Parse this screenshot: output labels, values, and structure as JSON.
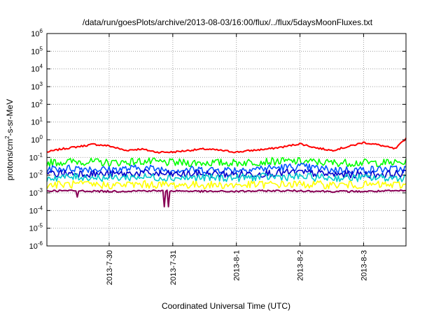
{
  "chart_data": {
    "type": "line",
    "title": "/data/run/goesPlots/archive/2013-08-03/16:00/flux/../flux/5daysMoonFluxes.txt",
    "xlabel": "Coordinated Universal Time (UTC)",
    "ylabel": {
      "base": "protons/cm",
      "sup": "2",
      "rest": "-s-sr-MeV"
    },
    "y_scale": "log",
    "ylim": [
      1e-06,
      1000000.0
    ],
    "y_ticks": [
      {
        "value": 1e-06,
        "base": "10",
        "exp": "-6"
      },
      {
        "value": 1e-05,
        "base": "10",
        "exp": "-5"
      },
      {
        "value": 0.0001,
        "base": "10",
        "exp": "-4"
      },
      {
        "value": 0.001,
        "base": "10",
        "exp": "-3"
      },
      {
        "value": 0.01,
        "base": "10",
        "exp": "-2"
      },
      {
        "value": 0.1,
        "base": "10",
        "exp": "-1"
      },
      {
        "value": 1.0,
        "base": "10",
        "exp": "0"
      },
      {
        "value": 10.0,
        "base": "10",
        "exp": "1"
      },
      {
        "value": 100.0,
        "base": "10",
        "exp": "2"
      },
      {
        "value": 1000.0,
        "base": "10",
        "exp": "3"
      },
      {
        "value": 10000.0,
        "base": "10",
        "exp": "4"
      },
      {
        "value": 100000.0,
        "base": "10",
        "exp": "5"
      },
      {
        "value": 1000000.0,
        "base": "10",
        "exp": "6"
      }
    ],
    "x_is_time": true,
    "xlim": [
      "2013-07-29 00:30",
      "2013-08-03 16:00"
    ],
    "x_ticks": [
      "2013-7-30",
      "2013-7-31",
      "2013-8-1",
      "2013-8-2",
      "2013-8-3"
    ],
    "grid": true,
    "legend": "none",
    "series": [
      {
        "color": "#ff0000",
        "x": [
          "2013-07-29 00:30",
          "2013-07-29 06:00",
          "2013-07-29 12:00",
          "2013-07-29 18:00",
          "2013-07-30 00:00",
          "2013-07-30 06:00",
          "2013-07-30 12:00",
          "2013-07-30 18:00",
          "2013-07-31 00:00",
          "2013-07-31 06:00",
          "2013-07-31 12:00",
          "2013-07-31 18:00",
          "2013-08-01 00:00",
          "2013-08-01 06:00",
          "2013-08-01 12:00",
          "2013-08-01 18:00",
          "2013-08-02 00:00",
          "2013-08-02 06:00",
          "2013-08-02 12:00",
          "2013-08-02 18:00",
          "2013-08-03 00:00",
          "2013-08-03 06:00",
          "2013-08-03 12:00",
          "2013-08-03 16:00"
        ],
        "y": [
          0.2,
          0.3,
          0.4,
          0.55,
          0.45,
          0.25,
          0.3,
          0.2,
          0.2,
          0.25,
          0.3,
          0.25,
          0.2,
          0.25,
          0.3,
          0.4,
          0.6,
          0.35,
          0.25,
          0.4,
          0.7,
          0.5,
          0.3,
          1.2
        ]
      },
      {
        "color": "#00ff00",
        "x": [
          "2013-07-29 00:30",
          "2013-07-29 12:00",
          "2013-07-30 00:00",
          "2013-07-30 12:00",
          "2013-07-31 00:00",
          "2013-07-31 12:00",
          "2013-08-01 00:00",
          "2013-08-01 12:00",
          "2013-08-02 00:00",
          "2013-08-02 12:00",
          "2013-08-03 00:00",
          "2013-08-03 16:00"
        ],
        "y": [
          0.05,
          0.06,
          0.05,
          0.06,
          0.05,
          0.05,
          0.05,
          0.06,
          0.06,
          0.05,
          0.05,
          0.05
        ]
      },
      {
        "color": "#0055ff",
        "x": [
          "2013-07-29 00:30",
          "2013-07-29 12:00",
          "2013-07-30 00:00",
          "2013-07-30 12:00",
          "2013-07-31 00:00",
          "2013-07-31 12:00",
          "2013-08-01 00:00",
          "2013-08-01 12:00",
          "2013-08-02 00:00",
          "2013-08-02 12:00",
          "2013-08-03 00:00",
          "2013-08-03 16:00"
        ],
        "y": [
          0.022,
          0.025,
          0.02,
          0.025,
          0.02,
          0.02,
          0.02,
          0.025,
          0.03,
          0.02,
          0.02,
          0.022
        ]
      },
      {
        "color": "#0000cc",
        "x": [
          "2013-07-29 00:30",
          "2013-07-29 12:00",
          "2013-07-30 00:00",
          "2013-07-30 12:00",
          "2013-07-31 00:00",
          "2013-07-31 12:00",
          "2013-08-01 00:00",
          "2013-08-01 12:00",
          "2013-08-02 00:00",
          "2013-08-02 12:00",
          "2013-08-03 00:00",
          "2013-08-03 16:00"
        ],
        "y": [
          0.012,
          0.013,
          0.011,
          0.013,
          0.011,
          0.012,
          0.011,
          0.013,
          0.014,
          0.011,
          0.011,
          0.012
        ]
      },
      {
        "color": "#00cccc",
        "x": [
          "2013-07-29 00:30",
          "2013-07-29 12:00",
          "2013-07-30 00:00",
          "2013-07-30 12:00",
          "2013-07-31 00:00",
          "2013-07-31 12:00",
          "2013-08-01 00:00",
          "2013-08-01 12:00",
          "2013-08-02 00:00",
          "2013-08-02 12:00",
          "2013-08-03 00:00",
          "2013-08-03 16:00"
        ],
        "y": [
          0.007,
          0.008,
          0.007,
          0.008,
          0.007,
          0.007,
          0.007,
          0.008,
          0.008,
          0.007,
          0.007,
          0.007
        ]
      },
      {
        "color": "#ffff00",
        "x": [
          "2013-07-29 00:30",
          "2013-07-29 12:00",
          "2013-07-30 00:00",
          "2013-07-30 12:00",
          "2013-07-31 00:00",
          "2013-07-31 12:00",
          "2013-08-01 00:00",
          "2013-08-01 12:00",
          "2013-08-02 00:00",
          "2013-08-02 12:00",
          "2013-08-03 00:00",
          "2013-08-03 16:00"
        ],
        "y": [
          0.0028,
          0.003,
          0.0027,
          0.003,
          0.0028,
          0.0028,
          0.0027,
          0.003,
          0.003,
          0.0028,
          0.0028,
          0.0028
        ]
      },
      {
        "color": "#880055",
        "x": [
          "2013-07-29 00:30",
          "2013-07-29 12:00",
          "2013-07-30 00:00",
          "2013-07-30 12:00",
          "2013-07-31 00:00",
          "2013-07-31 12:00",
          "2013-08-01 00:00",
          "2013-08-01 12:00",
          "2013-08-02 00:00",
          "2013-08-02 12:00",
          "2013-08-03 00:00",
          "2013-08-03 16:00"
        ],
        "y": [
          0.0013,
          0.0013,
          0.0012,
          0.0013,
          0.0013,
          0.0012,
          0.0012,
          0.0013,
          0.0013,
          0.0012,
          0.0012,
          0.0013
        ]
      }
    ]
  }
}
